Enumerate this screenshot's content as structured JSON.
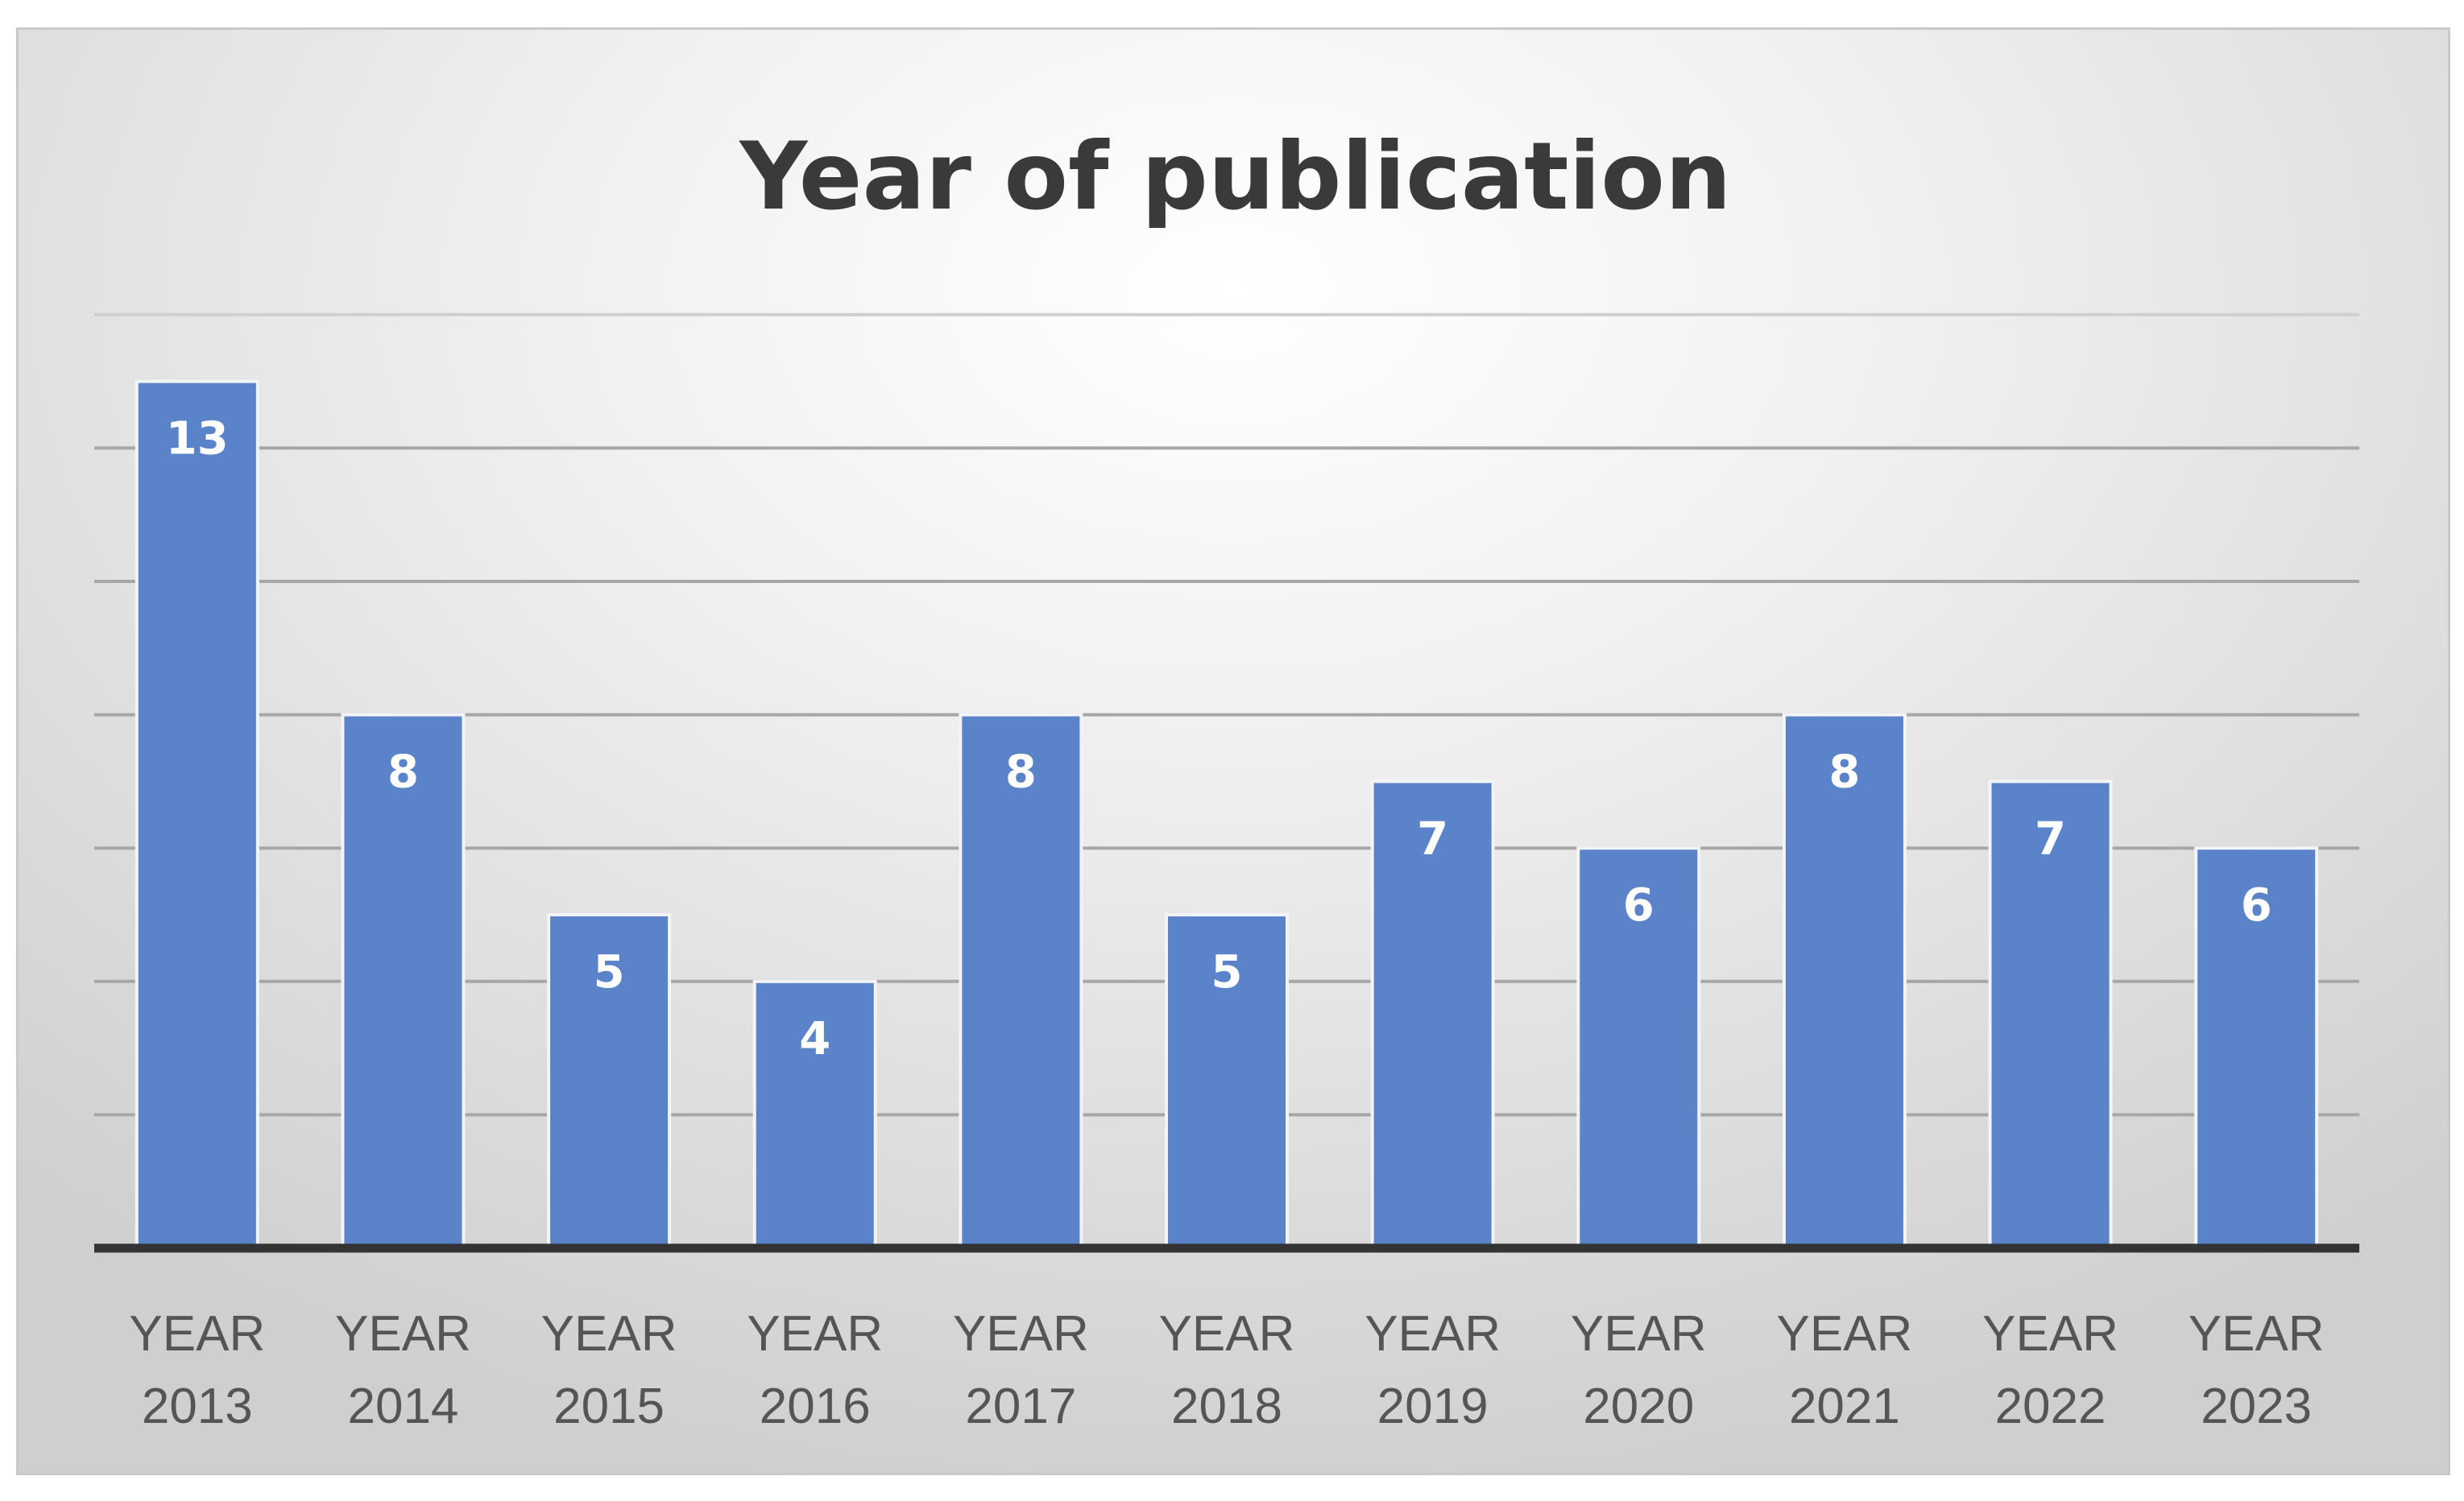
{
  "chart_data": {
    "type": "bar",
    "title": "Year of publication",
    "categories": [
      [
        "YEAR",
        "2013"
      ],
      [
        "YEAR",
        "2014"
      ],
      [
        "YEAR",
        "2015"
      ],
      [
        "YEAR",
        "2016"
      ],
      [
        "YEAR",
        "2017"
      ],
      [
        "YEAR",
        "2018"
      ],
      [
        "YEAR",
        "2019"
      ],
      [
        "YEAR",
        "2020"
      ],
      [
        "YEAR",
        "2021"
      ],
      [
        "YEAR",
        "2022"
      ],
      [
        "YEAR",
        "2023"
      ]
    ],
    "values": [
      13,
      8,
      5,
      4,
      8,
      5,
      7,
      6,
      8,
      7,
      6
    ],
    "data_labels": [
      "13",
      "8",
      "5",
      "4",
      "8",
      "5",
      "7",
      "6",
      "8",
      "7",
      "6"
    ],
    "ylim": [
      0,
      14
    ],
    "gridlines": true,
    "legend": "none",
    "colors": {
      "bar": "#5a83c9",
      "background": "#e0e0e0",
      "axis": "#333333",
      "title": "#3a3a3a"
    }
  }
}
